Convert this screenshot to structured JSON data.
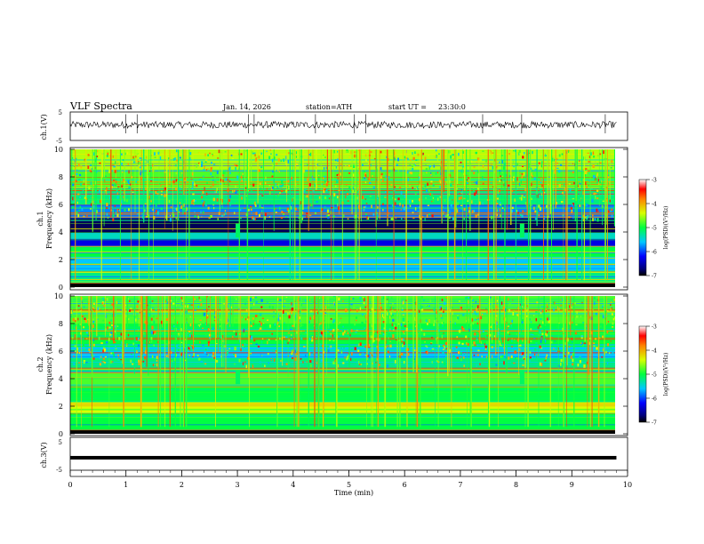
{
  "header": {
    "title": "VLF Spectra",
    "date": "Jan. 14, 2026",
    "station": "station=ATH",
    "start_label": "start UT =",
    "start_time": "23:30:0"
  },
  "chart_data": [
    {
      "type": "line",
      "name": "ch1-waveform",
      "ylabel": "ch.1(V)",
      "ylim": [
        -5,
        5
      ],
      "yticks": [
        "5",
        "-5"
      ],
      "xlim": [
        0,
        10
      ],
      "baseline": 0.5,
      "noise_amplitude": 1.2,
      "spikes_x": [
        1.0,
        1.2,
        3.2,
        3.3,
        4.4,
        5.1,
        5.3,
        7.4,
        8.1,
        9.6
      ]
    },
    {
      "type": "heatmap",
      "name": "ch1-spectrogram",
      "ylabel": "Frequency (kHz)",
      "channel": "ch.1",
      "ylim": [
        0,
        10
      ],
      "yticks": [
        "0",
        "2",
        "4",
        "6",
        "8",
        "10"
      ],
      "xlim": [
        0,
        9.8
      ],
      "colorbar": {
        "label": "log(PSD)(V²/Hz)",
        "min": -7,
        "max": -3,
        "ticks": [
          "-3",
          "-4",
          "-5",
          "-6",
          "-7"
        ]
      },
      "bands": [
        {
          "from": 0,
          "to": 0.3,
          "value": -7
        },
        {
          "from": 0.3,
          "to": 1.2,
          "value": -5.2
        },
        {
          "from": 1.2,
          "to": 2.2,
          "value": -5.6
        },
        {
          "from": 2.2,
          "to": 2.9,
          "value": -5.0
        },
        {
          "from": 2.9,
          "to": 3.5,
          "value": -6.3
        },
        {
          "from": 3.5,
          "to": 3.9,
          "value": -5.4
        },
        {
          "from": 3.9,
          "to": 5.0,
          "value": -6.8
        },
        {
          "from": 5.0,
          "to": 6.0,
          "value": -5.8
        },
        {
          "from": 6.0,
          "to": 7.0,
          "value": -5.2
        },
        {
          "from": 7.0,
          "to": 8.5,
          "value": -4.8
        },
        {
          "from": 8.5,
          "to": 10,
          "value": -4.5
        }
      ],
      "bursts_x": [
        3.0,
        8.1
      ]
    },
    {
      "type": "heatmap",
      "name": "ch2-spectrogram",
      "ylabel": "Frequency (kHz)",
      "channel": "ch.2",
      "ylim": [
        0,
        10
      ],
      "yticks": [
        "0",
        "2",
        "4",
        "6",
        "8",
        "10"
      ],
      "xlim": [
        0,
        9.8
      ],
      "colorbar": {
        "label": "log(PSD)(V²/Hz)",
        "min": -7,
        "max": -3,
        "ticks": [
          "-3",
          "-4",
          "-5",
          "-6",
          "-7"
        ]
      },
      "bands": [
        {
          "from": 0,
          "to": 0.3,
          "value": -6.5
        },
        {
          "from": 0.3,
          "to": 1.5,
          "value": -5.0
        },
        {
          "from": 1.5,
          "to": 2.3,
          "value": -4.4
        },
        {
          "from": 2.3,
          "to": 3.5,
          "value": -5.0
        },
        {
          "from": 3.5,
          "to": 4.5,
          "value": -4.8
        },
        {
          "from": 4.5,
          "to": 5.5,
          "value": -5.2
        },
        {
          "from": 5.5,
          "to": 6.3,
          "value": -5.6
        },
        {
          "from": 6.3,
          "to": 8.0,
          "value": -5.0
        },
        {
          "from": 8.0,
          "to": 10,
          "value": -4.8
        }
      ],
      "bursts_x": [
        3.0,
        8.1
      ]
    },
    {
      "type": "line",
      "name": "ch3-waveform",
      "ylabel": "ch.3(V)",
      "ylim": [
        -5,
        5
      ],
      "yticks": [
        "5",
        "-5"
      ],
      "xlim": [
        0,
        10
      ],
      "baseline": -1.2,
      "noise_amplitude": 0.15
    }
  ],
  "xaxis": {
    "label": "Time (min)",
    "ticks": [
      "0",
      "1",
      "2",
      "3",
      "4",
      "5",
      "6",
      "7",
      "8",
      "9",
      "10"
    ]
  }
}
